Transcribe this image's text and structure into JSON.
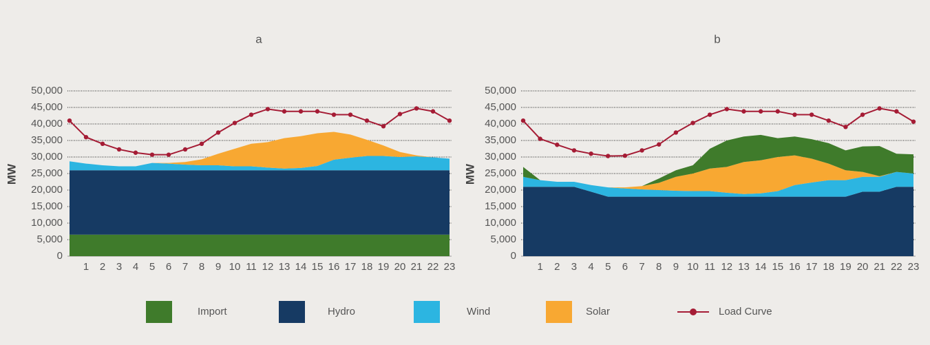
{
  "chart_data": [
    {
      "type": "area",
      "title": "a",
      "y_label": "MW",
      "x": [
        0,
        1,
        2,
        3,
        4,
        5,
        6,
        7,
        8,
        9,
        10,
        11,
        12,
        13,
        14,
        15,
        16,
        17,
        18,
        19,
        20,
        21,
        22,
        23
      ],
      "xlim": [
        0,
        23
      ],
      "xticks": [
        1,
        2,
        3,
        4,
        5,
        6,
        7,
        8,
        9,
        10,
        11,
        12,
        13,
        14,
        15,
        16,
        17,
        18,
        19,
        20,
        21,
        22,
        23
      ],
      "ylim": [
        0,
        50000
      ],
      "yticks": [
        0,
        {
          "value": 5000,
          "label": "5,000"
        },
        {
          "value": 10000,
          "label": "10,000"
        },
        {
          "value": 15000,
          "label": "15,000"
        },
        {
          "value": 20000,
          "label": "20,000"
        },
        {
          "value": 25000,
          "label": "25,000"
        },
        {
          "value": 30000,
          "label": "30,000"
        },
        {
          "value": 35000,
          "label": "35,000"
        },
        {
          "value": 40000,
          "label": "40,000"
        },
        {
          "value": 45000,
          "label": "45,000"
        },
        {
          "value": 50000,
          "label": "50,000"
        }
      ],
      "grid": true,
      "stacked": true,
      "series": [
        {
          "name": "Import",
          "color": "#3f7b2b",
          "values": [
            6500,
            6500,
            6500,
            6500,
            6500,
            6500,
            6500,
            6500,
            6500,
            6500,
            6500,
            6500,
            6500,
            6500,
            6500,
            6500,
            6500,
            6500,
            6500,
            6500,
            6500,
            6500,
            6500,
            6500
          ]
        },
        {
          "name": "Hydro",
          "color": "#163a63",
          "values": [
            19500,
            19500,
            19500,
            19500,
            19500,
            19500,
            19500,
            19500,
            19500,
            19500,
            19500,
            19500,
            19500,
            19500,
            19500,
            19500,
            19500,
            19500,
            19500,
            19500,
            19500,
            19500,
            19500,
            19500
          ]
        },
        {
          "name": "Wind",
          "color": "#2cb5e1",
          "values": [
            2700,
            2000,
            1500,
            1200,
            1200,
            2200,
            2000,
            1700,
            1500,
            1500,
            1200,
            1200,
            800,
            500,
            700,
            1300,
            3200,
            3800,
            4300,
            4300,
            4000,
            4200,
            3900,
            3500
          ]
        },
        {
          "name": "Solar",
          "color": "#f8a832",
          "values": [
            0,
            0,
            0,
            0,
            0,
            0,
            200,
            800,
            1800,
            3500,
            5300,
            6800,
            7700,
            9200,
            9600,
            9900,
            8400,
            7000,
            4900,
            3200,
            1500,
            300,
            0,
            0
          ]
        },
        {
          "name": "Load Curve",
          "type": "line",
          "color": "#a51c35",
          "values": [
            41000,
            36000,
            34000,
            32300,
            31300,
            30700,
            30700,
            32300,
            34000,
            37400,
            40300,
            42800,
            44500,
            43800,
            43800,
            43800,
            42800,
            42800,
            41000,
            39300,
            43000,
            44700,
            43800,
            41000
          ]
        }
      ]
    },
    {
      "type": "area",
      "title": "b",
      "y_label": "MW",
      "x": [
        0,
        1,
        2,
        3,
        4,
        5,
        6,
        7,
        8,
        9,
        10,
        11,
        12,
        13,
        14,
        15,
        16,
        17,
        18,
        19,
        20,
        21,
        22,
        23
      ],
      "xlim": [
        0,
        23
      ],
      "xticks": [
        1,
        2,
        3,
        4,
        5,
        6,
        7,
        8,
        9,
        10,
        11,
        12,
        13,
        14,
        15,
        16,
        17,
        18,
        19,
        20,
        21,
        22,
        23
      ],
      "ylim": [
        0,
        50000
      ],
      "yticks": [
        0,
        {
          "value": 5000,
          "label": "5,000"
        },
        {
          "value": 10000,
          "label": "10,000"
        },
        {
          "value": 15000,
          "label": "15,000"
        },
        {
          "value": 20000,
          "label": "20,000"
        },
        {
          "value": 25000,
          "label": "25,000"
        },
        {
          "value": 30000,
          "label": "30,000"
        },
        {
          "value": 35000,
          "label": "35,000"
        },
        {
          "value": 40000,
          "label": "40,000"
        },
        {
          "value": 45000,
          "label": "45,000"
        },
        {
          "value": 50000,
          "label": "50,000"
        }
      ],
      "grid": true,
      "stacked": true,
      "series": [
        {
          "name": "Hydro",
          "color": "#163a63",
          "values": [
            21000,
            21000,
            21000,
            21000,
            19500,
            18000,
            18000,
            18000,
            18000,
            18000,
            18000,
            18000,
            18000,
            18000,
            18000,
            18000,
            18000,
            18000,
            18000,
            18000,
            19500,
            19500,
            21000,
            21000
          ]
        },
        {
          "name": "Wind",
          "color": "#2cb5e1",
          "values": [
            3000,
            2000,
            1500,
            1500,
            2000,
            2800,
            2500,
            2200,
            2000,
            1800,
            1700,
            1700,
            1200,
            800,
            1000,
            1700,
            3500,
            4300,
            5000,
            5000,
            4500,
            4500,
            4500,
            4000
          ]
        },
        {
          "name": "Solar",
          "color": "#f8a832",
          "values": [
            0,
            0,
            0,
            0,
            0,
            0,
            300,
            1000,
            2200,
            4200,
            5300,
            6800,
            7800,
            9700,
            10000,
            10300,
            9000,
            7200,
            5000,
            3000,
            1500,
            200,
            0,
            0
          ]
        },
        {
          "name": "Import",
          "color": "#3f7b2b",
          "values": [
            3000,
            0,
            0,
            0,
            0,
            0,
            0,
            0,
            1300,
            2000,
            2500,
            6000,
            8000,
            7700,
            7700,
            5700,
            5700,
            5900,
            6200,
            6000,
            7700,
            9100,
            5500,
            5800
          ]
        },
        {
          "name": "Load Curve",
          "type": "line",
          "color": "#a51c35",
          "values": [
            41000,
            35500,
            33700,
            32000,
            31000,
            30300,
            30400,
            32000,
            33800,
            37400,
            40300,
            42800,
            44500,
            43800,
            43800,
            43800,
            42800,
            42800,
            41000,
            39100,
            42800,
            44700,
            43800,
            40700
          ]
        }
      ]
    }
  ]
}
